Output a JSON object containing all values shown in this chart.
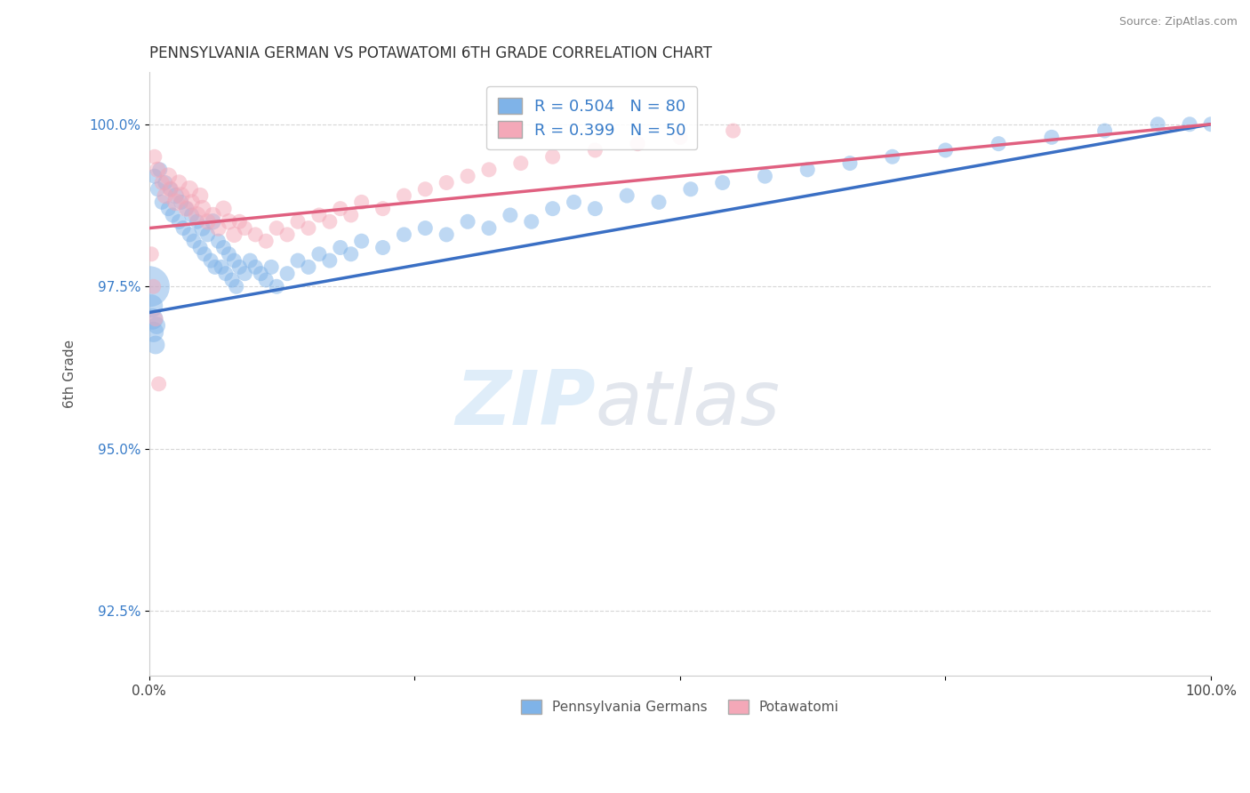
{
  "title": "PENNSYLVANIA GERMAN VS POTAWATOMI 6TH GRADE CORRELATION CHART",
  "source_text": "Source: ZipAtlas.com",
  "ylabel": "6th Grade",
  "xlim": [
    0.0,
    1.0
  ],
  "ylim": [
    0.915,
    1.008
  ],
  "yticks": [
    0.925,
    0.95,
    0.975,
    1.0
  ],
  "ytick_labels": [
    "92.5%",
    "95.0%",
    "97.5%",
    "100.0%"
  ],
  "xticks": [
    0.0,
    0.25,
    0.5,
    0.75,
    1.0
  ],
  "xtick_labels": [
    "0.0%",
    "",
    "",
    "",
    "100.0%"
  ],
  "blue_R": 0.504,
  "blue_N": 80,
  "pink_R": 0.399,
  "pink_N": 50,
  "blue_color": "#7FB3E8",
  "pink_color": "#F4A8B8",
  "blue_line_color": "#3A6FC4",
  "pink_line_color": "#E06080",
  "legend_label_blue": "Pennsylvania Germans",
  "legend_label_pink": "Potawatomi",
  "blue_line_x": [
    0.0,
    1.0
  ],
  "blue_line_y": [
    0.971,
    1.0
  ],
  "pink_line_x": [
    0.0,
    1.0
  ],
  "pink_line_y": [
    0.984,
    1.0
  ],
  "blue_x": [
    0.005,
    0.008,
    0.01,
    0.012,
    0.015,
    0.018,
    0.02,
    0.022,
    0.025,
    0.028,
    0.03,
    0.032,
    0.035,
    0.038,
    0.04,
    0.042,
    0.045,
    0.048,
    0.05,
    0.052,
    0.055,
    0.058,
    0.06,
    0.062,
    0.065,
    0.068,
    0.07,
    0.072,
    0.075,
    0.078,
    0.08,
    0.082,
    0.085,
    0.09,
    0.095,
    0.1,
    0.105,
    0.11,
    0.115,
    0.12,
    0.13,
    0.14,
    0.15,
    0.16,
    0.17,
    0.18,
    0.19,
    0.2,
    0.22,
    0.24,
    0.26,
    0.28,
    0.3,
    0.32,
    0.34,
    0.36,
    0.38,
    0.4,
    0.42,
    0.45,
    0.48,
    0.51,
    0.54,
    0.58,
    0.62,
    0.66,
    0.7,
    0.75,
    0.8,
    0.85,
    0.9,
    0.95,
    0.98,
    1.0,
    0.0,
    0.002,
    0.003,
    0.004,
    0.006,
    0.007
  ],
  "blue_y": [
    0.992,
    0.99,
    0.993,
    0.988,
    0.991,
    0.987,
    0.99,
    0.986,
    0.989,
    0.985,
    0.988,
    0.984,
    0.987,
    0.983,
    0.986,
    0.982,
    0.985,
    0.981,
    0.984,
    0.98,
    0.983,
    0.979,
    0.985,
    0.978,
    0.982,
    0.978,
    0.981,
    0.977,
    0.98,
    0.976,
    0.979,
    0.975,
    0.978,
    0.977,
    0.979,
    0.978,
    0.977,
    0.976,
    0.978,
    0.975,
    0.977,
    0.979,
    0.978,
    0.98,
    0.979,
    0.981,
    0.98,
    0.982,
    0.981,
    0.983,
    0.984,
    0.983,
    0.985,
    0.984,
    0.986,
    0.985,
    0.987,
    0.988,
    0.987,
    0.989,
    0.988,
    0.99,
    0.991,
    0.992,
    0.993,
    0.994,
    0.995,
    0.996,
    0.997,
    0.998,
    0.999,
    1.0,
    1.0,
    1.0,
    0.975,
    0.972,
    0.97,
    0.968,
    0.966,
    0.969
  ],
  "blue_sizes": [
    30,
    30,
    30,
    30,
    30,
    30,
    30,
    30,
    35,
    30,
    30,
    30,
    30,
    30,
    30,
    30,
    30,
    30,
    35,
    30,
    30,
    30,
    35,
    30,
    30,
    30,
    30,
    30,
    30,
    30,
    30,
    30,
    30,
    30,
    30,
    30,
    30,
    30,
    30,
    30,
    30,
    30,
    30,
    30,
    30,
    30,
    30,
    30,
    30,
    30,
    30,
    30,
    30,
    30,
    30,
    30,
    30,
    30,
    30,
    30,
    30,
    30,
    30,
    30,
    30,
    30,
    30,
    30,
    30,
    30,
    30,
    30,
    30,
    30,
    220,
    70,
    60,
    55,
    45,
    40
  ],
  "pink_x": [
    0.005,
    0.008,
    0.012,
    0.015,
    0.018,
    0.02,
    0.025,
    0.028,
    0.03,
    0.035,
    0.038,
    0.04,
    0.045,
    0.048,
    0.05,
    0.055,
    0.06,
    0.065,
    0.07,
    0.075,
    0.08,
    0.085,
    0.09,
    0.1,
    0.11,
    0.12,
    0.13,
    0.14,
    0.15,
    0.16,
    0.17,
    0.18,
    0.19,
    0.2,
    0.22,
    0.24,
    0.26,
    0.28,
    0.3,
    0.32,
    0.35,
    0.38,
    0.42,
    0.46,
    0.5,
    0.55,
    0.002,
    0.004,
    0.006,
    0.009
  ],
  "pink_y": [
    0.995,
    0.993,
    0.991,
    0.989,
    0.992,
    0.99,
    0.988,
    0.991,
    0.989,
    0.987,
    0.99,
    0.988,
    0.986,
    0.989,
    0.987,
    0.985,
    0.986,
    0.984,
    0.987,
    0.985,
    0.983,
    0.985,
    0.984,
    0.983,
    0.982,
    0.984,
    0.983,
    0.985,
    0.984,
    0.986,
    0.985,
    0.987,
    0.986,
    0.988,
    0.987,
    0.989,
    0.99,
    0.991,
    0.992,
    0.993,
    0.994,
    0.995,
    0.996,
    0.997,
    0.998,
    0.999,
    0.98,
    0.975,
    0.97,
    0.96
  ],
  "pink_sizes": [
    30,
    35,
    30,
    35,
    40,
    35,
    40,
    35,
    40,
    35,
    40,
    35,
    40,
    35,
    40,
    35,
    35,
    35,
    35,
    35,
    35,
    30,
    30,
    30,
    30,
    30,
    30,
    30,
    30,
    30,
    30,
    30,
    30,
    30,
    30,
    30,
    30,
    30,
    30,
    30,
    30,
    30,
    30,
    30,
    30,
    30,
    30,
    30,
    30,
    30
  ],
  "watermark_text1": "ZIP",
  "watermark_text2": "atlas",
  "background_color": "#ffffff",
  "grid_color": "#bbbbbb",
  "grid_alpha": 0.6
}
